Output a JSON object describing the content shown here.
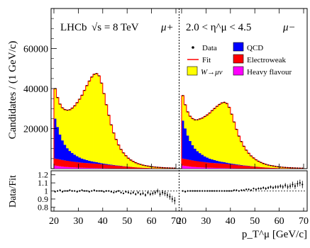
{
  "chart_data": {
    "type": "area",
    "experiment_label": "LHCb",
    "energy_label": "√s = 8 TeV",
    "eta_range_label": "2.0 < η^μ < 4.5",
    "ylabel": "Candidates / (1 GeV/c)",
    "ratio_ylabel": "Data/Fit",
    "xlabel": "p_T^μ [GeV/c]",
    "ylim": [
      0,
      80000
    ],
    "ratio_ylim": [
      0.75,
      1.25
    ],
    "xlim": [
      20,
      70
    ],
    "yticks": [
      20000,
      40000,
      60000
    ],
    "ratio_yticks": [
      1.2,
      1.1,
      1,
      0.9,
      0.8
    ],
    "xticks": [
      20,
      30,
      40,
      50,
      60,
      70
    ],
    "legend": [
      {
        "label": "Data",
        "kind": "marker",
        "color": "#000000"
      },
      {
        "label": "QCD",
        "kind": "box",
        "color": "#0000ff"
      },
      {
        "label": "Fit",
        "kind": "line",
        "color": "#ff0000"
      },
      {
        "label": "Electroweak",
        "kind": "box",
        "color": "#ff0000"
      },
      {
        "label": "W→μν",
        "kind": "box",
        "color": "#ffff00"
      },
      {
        "label": "Heavy flavour",
        "kind": "box",
        "color": "#ff00ff"
      }
    ],
    "x": [
      20,
      21,
      22,
      23,
      24,
      25,
      26,
      27,
      28,
      29,
      30,
      31,
      32,
      33,
      34,
      35,
      36,
      37,
      38,
      39,
      40,
      41,
      42,
      43,
      44,
      45,
      46,
      47,
      48,
      49,
      50,
      51,
      52,
      53,
      54,
      55,
      56,
      57,
      58,
      59,
      60,
      61,
      62,
      63,
      64,
      65,
      66,
      67,
      68,
      69
    ],
    "panels": [
      {
        "charge_label": "μ+",
        "series": [
          {
            "name": "Heavy flavour",
            "color": "#ff00ff",
            "values": [
              1500,
              1300,
              1150,
              1000,
              900,
              800,
              720,
              650,
              590,
              540,
              490,
              450,
              410,
              380,
              350,
              320,
              290,
              260,
              230,
              200,
              170,
              150,
              130,
              110,
              100,
              90,
              80,
              70,
              60,
              55,
              50,
              45,
              40,
              35,
              30,
              28,
              25,
              22,
              20,
              18,
              16,
              14,
              12,
              10,
              9,
              8,
              7,
              6,
              5,
              5
            ]
          },
          {
            "name": "Electroweak",
            "color": "#ff0000",
            "values": [
              3500,
              3500,
              3400,
              3300,
              3200,
              3100,
              3000,
              2900,
              2800,
              2700,
              2600,
              2500,
              2450,
              2400,
              2350,
              2300,
              2250,
              2200,
              2100,
              2000,
              1900,
              1800,
              1700,
              1600,
              1500,
              1400,
              1300,
              1200,
              1100,
              1000,
              900,
              800,
              700,
              600,
              500,
              450,
              400,
              350,
              300,
              250,
              200,
              180,
              160,
              140,
              120,
              100,
              90,
              80,
              70,
              60
            ]
          },
          {
            "name": "QCD",
            "color": "#0000ff",
            "values": [
              20000,
              16000,
              12500,
              9800,
              7800,
              6300,
              5100,
              4300,
              3600,
              3000,
              2500,
              2100,
              1800,
              1500,
              1250,
              1050,
              900,
              760,
              640,
              540,
              450,
              380,
              320,
              270,
              230,
              190,
              160,
              135,
              115,
              95,
              80,
              68,
              58,
              50,
              42,
              36,
              30,
              25,
              21,
              18,
              15,
              12,
              10,
              8,
              7,
              6,
              5,
              4,
              3,
              3
            ]
          },
          {
            "name": "W→μν",
            "color": "#ffff00",
            "values": [
              15000,
              14700,
              15200,
              16300,
              17600,
              19000,
              20600,
              22400,
              24400,
              26700,
              29100,
              31600,
              34400,
              37200,
              39800,
              42100,
              43700,
              44300,
              43400,
              40000,
              35000,
              29600,
              24500,
              19900,
              16000,
              12900,
              10300,
              8200,
              6600,
              5300,
              4200,
              3400,
              2800,
              2300,
              1900,
              1600,
              1300,
              1100,
              950,
              800,
              680,
              580,
              500,
              430,
              370,
              320,
              280,
              240,
              210,
              180
            ]
          }
        ],
        "ratio": [
          0.99,
          1.0,
          1.01,
          0.99,
          1.0,
          1.0,
          1.01,
          1.0,
          1.0,
          0.99,
          1.0,
          1.01,
          1.0,
          1.0,
          0.99,
          1.0,
          1.01,
          1.0,
          1.0,
          1.0,
          0.99,
          1.0,
          1.0,
          0.99,
          0.98,
          0.99,
          1.0,
          0.98,
          0.97,
          0.99,
          0.98,
          0.97,
          0.98,
          0.96,
          0.98,
          0.96,
          0.97,
          0.95,
          0.98,
          0.96,
          0.97,
          0.98,
          1.0,
          0.96,
          0.98,
          0.97,
          0.95,
          0.93,
          0.9,
          0.88
        ],
        "ratio_err": [
          0.005,
          0.005,
          0.005,
          0.005,
          0.005,
          0.005,
          0.005,
          0.005,
          0.005,
          0.005,
          0.005,
          0.005,
          0.005,
          0.005,
          0.005,
          0.005,
          0.005,
          0.005,
          0.005,
          0.005,
          0.006,
          0.006,
          0.007,
          0.008,
          0.008,
          0.009,
          0.01,
          0.01,
          0.011,
          0.012,
          0.013,
          0.014,
          0.015,
          0.016,
          0.017,
          0.018,
          0.019,
          0.02,
          0.021,
          0.022,
          0.024,
          0.026,
          0.028,
          0.03,
          0.032,
          0.034,
          0.036,
          0.038,
          0.04,
          0.045
        ]
      },
      {
        "charge_label": "μ−",
        "series": [
          {
            "name": "Heavy flavour",
            "color": "#ff00ff",
            "values": [
              1500,
              1300,
              1150,
              1000,
              900,
              800,
              720,
              650,
              590,
              540,
              490,
              450,
              410,
              380,
              350,
              320,
              290,
              260,
              230,
              200,
              170,
              150,
              130,
              110,
              100,
              90,
              80,
              70,
              60,
              55,
              50,
              45,
              40,
              35,
              30,
              28,
              25,
              22,
              20,
              18,
              16,
              14,
              12,
              10,
              9,
              8,
              7,
              6,
              5,
              5
            ]
          },
          {
            "name": "Electroweak",
            "color": "#ff0000",
            "values": [
              3500,
              3500,
              3400,
              3300,
              3200,
              3100,
              3000,
              2900,
              2800,
              2700,
              2600,
              2500,
              2450,
              2400,
              2350,
              2300,
              2250,
              2200,
              2100,
              2000,
              1900,
              1800,
              1700,
              1600,
              1500,
              1400,
              1300,
              1200,
              1100,
              1000,
              900,
              800,
              700,
              600,
              500,
              450,
              400,
              350,
              300,
              250,
              200,
              180,
              160,
              140,
              120,
              100,
              90,
              80,
              70,
              60
            ]
          },
          {
            "name": "QCD",
            "color": "#0000ff",
            "values": [
              19000,
              15300,
              12000,
              9500,
              7600,
              6100,
              5000,
              4200,
              3500,
              2900,
              2450,
              2050,
              1750,
              1480,
              1230,
              1030,
              880,
              750,
              630,
              530,
              440,
              370,
              310,
              260,
              220,
              185,
              155,
              130,
              110,
              92,
              78,
              66,
              56,
              48,
              41,
              35,
              29,
              24,
              20,
              17,
              14,
              12,
              10,
              8,
              7,
              6,
              5,
              4,
              3,
              3
            ]
          },
          {
            "name": "W→μν",
            "color": "#ffff00",
            "values": [
              12500,
              11800,
              11800,
              12400,
              13300,
              14400,
              15700,
              17100,
              18400,
              19900,
              21300,
              22800,
              24400,
              25800,
              27200,
              28400,
              29400,
              29900,
              29600,
              27900,
              24700,
              21000,
              17500,
              14300,
              11700,
              9500,
              7700,
              6300,
              5100,
              4200,
              3400,
              2800,
              2300,
              1900,
              1600,
              1300,
              1100,
              950,
              800,
              680,
              580,
              500,
              430,
              370,
              320,
              280,
              240,
              210,
              180,
              160
            ]
          }
        ],
        "ratio": [
          1.0,
          0.99,
          1.0,
          1.0,
          1.0,
          1.0,
          1.0,
          1.0,
          1.0,
          1.0,
          1.0,
          1.0,
          1.0,
          1.0,
          1.0,
          1.0,
          1.0,
          1.0,
          1.0,
          1.0,
          1.0,
          1.01,
          1.01,
          1.0,
          1.01,
          1.01,
          1.02,
          1.02,
          1.01,
          1.03,
          1.02,
          1.03,
          1.03,
          1.04,
          1.03,
          1.04,
          1.05,
          1.04,
          1.05,
          1.05,
          1.06,
          1.05,
          1.07,
          1.05,
          1.06,
          1.08,
          1.06,
          1.09,
          1.1,
          1.08
        ],
        "ratio_err": [
          0.005,
          0.005,
          0.005,
          0.005,
          0.005,
          0.005,
          0.005,
          0.005,
          0.005,
          0.005,
          0.005,
          0.005,
          0.005,
          0.005,
          0.005,
          0.005,
          0.005,
          0.005,
          0.005,
          0.005,
          0.006,
          0.006,
          0.007,
          0.008,
          0.008,
          0.009,
          0.01,
          0.01,
          0.011,
          0.012,
          0.013,
          0.014,
          0.015,
          0.016,
          0.017,
          0.018,
          0.019,
          0.02,
          0.021,
          0.022,
          0.024,
          0.026,
          0.028,
          0.03,
          0.032,
          0.034,
          0.036,
          0.038,
          0.04,
          0.045
        ]
      }
    ]
  }
}
